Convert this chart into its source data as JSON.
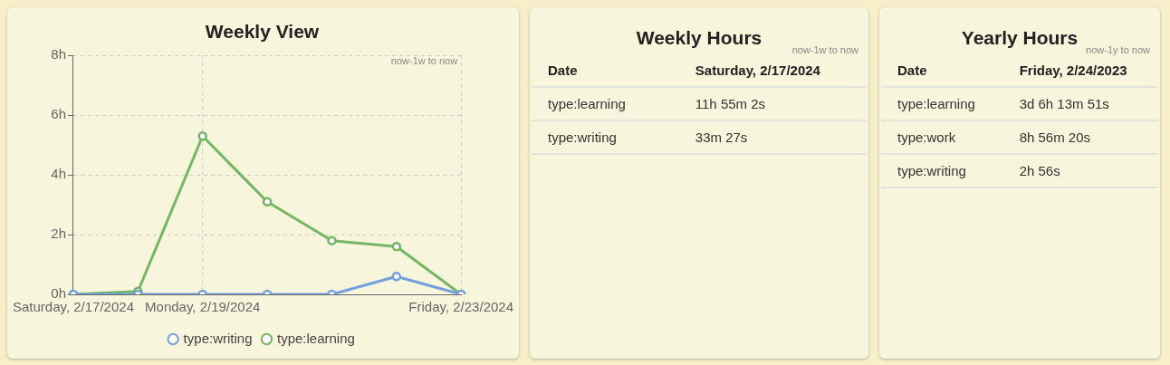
{
  "chart_data": [
    {
      "type": "line",
      "title": "Weekly View",
      "annotations": [
        "now-1w to now"
      ],
      "categories": [
        "Saturday, 2/17/2024",
        null,
        "Monday, 2/19/2024",
        null,
        null,
        null,
        "Friday, 2/23/2024"
      ],
      "series": [
        {
          "name": "type:writing",
          "color": "#74a0db",
          "values": [
            0,
            0,
            0,
            0,
            0,
            0.6,
            0
          ]
        },
        {
          "name": "type:learning",
          "color": "#74b566",
          "values": [
            0,
            0.1,
            5.3,
            3.1,
            1.8,
            1.6,
            0
          ]
        }
      ],
      "ylim": [
        0,
        8
      ],
      "yticks": [
        {
          "value": 0,
          "label": "0h"
        },
        {
          "value": 2,
          "label": "2h"
        },
        {
          "value": 4,
          "label": "4h"
        },
        {
          "value": 6,
          "label": "6h"
        },
        {
          "value": 8,
          "label": "8h"
        }
      ],
      "grid": true,
      "legend": "bottom",
      "marker": "circle",
      "line_style": "solid"
    },
    {
      "type": "other",
      "title": "Weekly Hours",
      "annotations": [
        "now-1w to now",
        "Date",
        "Saturday, 2/17/2024",
        "type:learning",
        "11h 55m 2s",
        "type:writing",
        "33m 27s"
      ]
    },
    {
      "type": "other",
      "title": "Yearly Hours",
      "annotations": [
        "now-1y to now",
        "Date",
        "Friday, 2/24/2023",
        "type:learning",
        "3d 6h 13m 51s",
        "type:work",
        "8h 56m 20s",
        "type:writing",
        "2h 56s"
      ]
    }
  ]
}
